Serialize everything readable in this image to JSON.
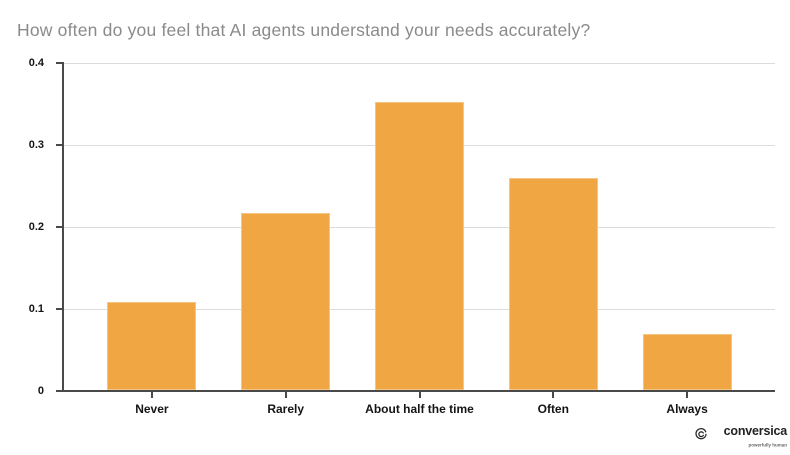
{
  "title": "How often do you feel that AI agents understand your needs accurately?",
  "chart_data": {
    "type": "bar",
    "title": "How often do you feel that AI agents understand your needs accurately?",
    "categories": [
      "Never",
      "Rarely",
      "About half the time",
      "Often",
      "Always"
    ],
    "values": [
      0.107,
      0.216,
      0.351,
      0.258,
      0.068
    ],
    "xlabel": "",
    "ylabel": "",
    "ylim": [
      0,
      0.4
    ],
    "yticks": [
      0,
      0.1,
      0.2,
      0.3,
      0.4
    ],
    "ytick_labels": [
      "0",
      "0.1",
      "0.2",
      "0.3",
      "0.4"
    ],
    "grid": true,
    "legend": false,
    "bar_color": "#F0A642"
  },
  "colors": {
    "background": "#FFFFFF",
    "title_text": "#8A8A8A",
    "axis": "#4A4A4A",
    "gridline": "#DCDCDC",
    "tick_label": "#141414",
    "bar": "#F0A642"
  },
  "logo": {
    "name": "conversica",
    "tagline": "powerfully human"
  }
}
